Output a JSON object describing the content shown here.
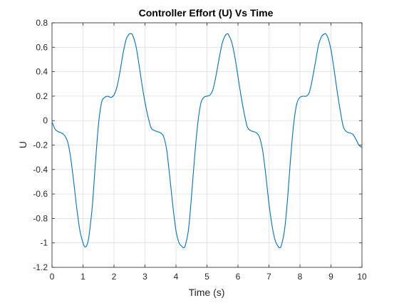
{
  "chart_data": {
    "type": "line",
    "title": "Controller  Effort (U) Vs Time",
    "xlabel": "Time (s)",
    "ylabel": "U",
    "xlim": [
      0,
      10
    ],
    "ylim": [
      -1.2,
      0.8
    ],
    "xticks": [
      "0",
      "1",
      "2",
      "3",
      "4",
      "5",
      "6",
      "7",
      "8",
      "9",
      "10"
    ],
    "yticks": [
      "-1.2",
      "-1",
      "-0.8",
      "-0.6",
      "-0.4",
      "-0.2",
      "0",
      "0.2",
      "0.4",
      "0.6",
      "0.8"
    ],
    "grid": true,
    "series": [
      {
        "color": "#0072bd",
        "x": [
          0,
          0.1,
          0.2,
          0.3,
          0.4,
          0.5,
          0.6,
          0.7,
          0.8,
          0.9,
          1.0,
          1.05,
          1.1,
          1.15,
          1.2,
          1.3,
          1.4,
          1.5,
          1.6,
          1.7,
          1.8,
          1.9,
          2.0,
          2.1,
          2.2,
          2.3,
          2.4,
          2.5,
          2.55,
          2.6,
          2.7,
          2.8,
          2.9,
          3.0,
          3.1,
          3.2,
          3.3,
          3.4,
          3.5,
          3.6,
          3.7,
          3.8,
          3.9,
          4.0,
          4.1,
          4.2,
          4.25,
          4.3,
          4.4,
          4.5,
          4.6,
          4.7,
          4.8,
          4.9,
          5.0,
          5.1,
          5.2,
          5.3,
          5.4,
          5.5,
          5.6,
          5.67,
          5.7,
          5.8,
          5.9,
          6.0,
          6.1,
          6.2,
          6.3,
          6.4,
          6.5,
          6.6,
          6.7,
          6.8,
          6.9,
          7.0,
          7.1,
          7.2,
          7.3,
          7.35,
          7.4,
          7.5,
          7.6,
          7.7,
          7.8,
          7.9,
          8.0,
          8.1,
          8.2,
          8.3,
          8.4,
          8.5,
          8.6,
          8.7,
          8.8,
          8.83,
          8.9,
          9.0,
          9.1,
          9.2,
          9.3,
          9.4,
          9.5,
          9.6,
          9.7,
          9.8,
          9.9,
          10.0
        ],
        "y": [
          -0.01,
          -0.07,
          -0.09,
          -0.1,
          -0.12,
          -0.17,
          -0.3,
          -0.5,
          -0.72,
          -0.9,
          -1.0,
          -1.03,
          -1.03,
          -1.0,
          -0.93,
          -0.7,
          -0.35,
          -0.03,
          0.15,
          0.19,
          0.2,
          0.19,
          0.21,
          0.28,
          0.41,
          0.56,
          0.67,
          0.71,
          0.71,
          0.7,
          0.62,
          0.47,
          0.3,
          0.15,
          0.03,
          -0.06,
          -0.08,
          -0.09,
          -0.1,
          -0.13,
          -0.24,
          -0.46,
          -0.7,
          -0.9,
          -1.0,
          -1.03,
          -1.04,
          -1.02,
          -0.9,
          -0.62,
          -0.3,
          -0.03,
          0.14,
          0.19,
          0.2,
          0.21,
          0.26,
          0.38,
          0.52,
          0.64,
          0.7,
          0.71,
          0.7,
          0.64,
          0.52,
          0.36,
          0.2,
          0.06,
          -0.05,
          -0.08,
          -0.09,
          -0.1,
          -0.14,
          -0.25,
          -0.45,
          -0.68,
          -0.86,
          -0.98,
          -1.03,
          -1.04,
          -1.02,
          -0.9,
          -0.64,
          -0.3,
          -0.02,
          0.14,
          0.19,
          0.2,
          0.2,
          0.23,
          0.34,
          0.48,
          0.62,
          0.69,
          0.71,
          0.71,
          0.68,
          0.58,
          0.42,
          0.24,
          0.08,
          -0.05,
          -0.09,
          -0.1,
          -0.11,
          -0.15,
          -0.2,
          -0.22
        ]
      }
    ]
  }
}
